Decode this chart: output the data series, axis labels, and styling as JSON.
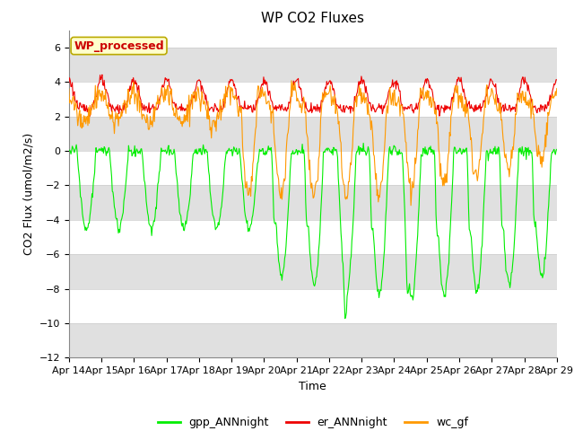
{
  "title": "WP CO2 Fluxes",
  "xlabel": "Time",
  "ylabel": "CO2 Flux (umol/m2/s)",
  "ylim": [
    -12,
    7
  ],
  "yticks": [
    -12,
    -10,
    -8,
    -6,
    -4,
    -2,
    0,
    2,
    4,
    6
  ],
  "color_gpp": "#00ee00",
  "color_er": "#ee0000",
  "color_wc": "#ff9900",
  "legend_labels": [
    "gpp_ANNnight",
    "er_ANNnight",
    "wc_gf"
  ],
  "wp_label": "WP_processed",
  "wp_label_color": "#cc0000",
  "wp_box_facecolor": "#ffffcc",
  "wp_box_edgecolor": "#bbaa00",
  "background_color": "#ffffff",
  "band_color": "#e0e0e0",
  "title_fontsize": 11,
  "axis_fontsize": 9,
  "tick_fontsize": 8,
  "legend_fontsize": 9
}
